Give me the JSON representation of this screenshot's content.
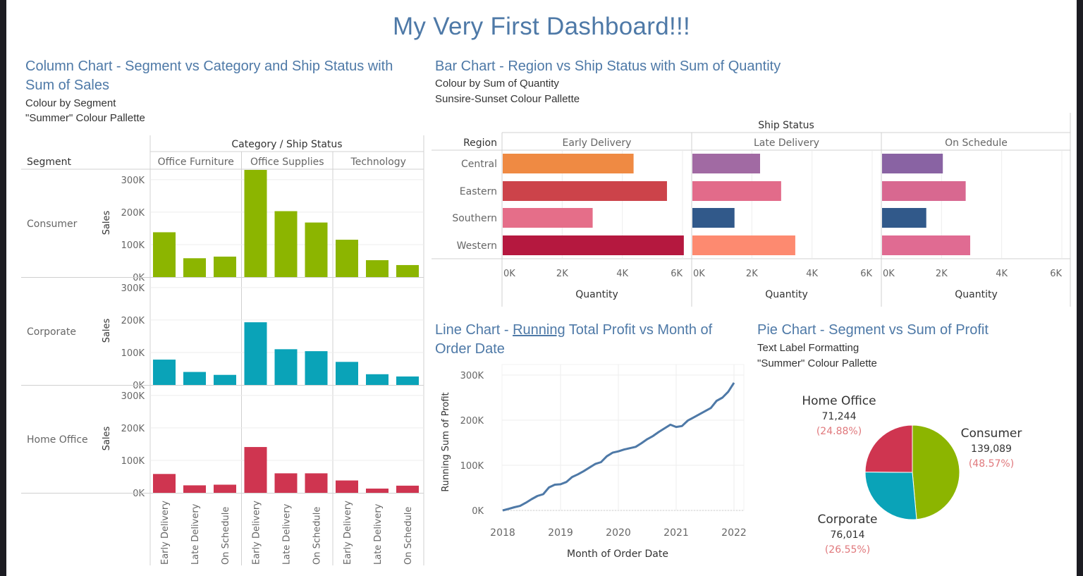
{
  "dashboard": {
    "title": "My Very First Dashboard!!!"
  },
  "column_section": {
    "title": "Column Chart - Segment vs Category and Ship Status with Sum of Sales",
    "subtitle_1": "Colour by Segment",
    "subtitle_2": "\"Summer\" Colour Pallette"
  },
  "bar_section": {
    "title": "Bar Chart - Region vs Ship Status with Sum of Quantity",
    "subtitle_1": "Colour by Sum of Quantity",
    "subtitle_2": "Sunsire-Sunset Colour Pallette"
  },
  "line_section": {
    "title_prefix": "Line Chart - ",
    "title_underlined": "Running",
    "title_rest": " Total Profit vs Month of Order Date"
  },
  "pie_section": {
    "title": "Pie Chart - Segment vs Sum of Profit",
    "subtitle_1": "Text Label Formatting",
    "subtitle_2": "\"Summer\" Colour Pallette"
  },
  "colors": {
    "title_blue": "#4e79a7",
    "consumer": "#8cb500",
    "corporate": "#0aa3b8",
    "home_office": "#cf3550",
    "line": "#4e79a7",
    "pct_label": "#e0787c"
  },
  "chart_data": [
    {
      "id": "column",
      "type": "bar",
      "header_title": "Category  /  Ship Status",
      "row_header": "Segment",
      "ylabel": "Sales",
      "ylim": [
        0,
        330000
      ],
      "yticks": [
        0,
        100000,
        200000,
        300000
      ],
      "ytick_labels": [
        "0K",
        "100K",
        "200K",
        "300K"
      ],
      "categories": [
        "Office Furniture",
        "Office Supplies",
        "Technology"
      ],
      "ship_status": [
        "Early Delivery",
        "Late Delivery",
        "On Schedule"
      ],
      "segments": [
        {
          "name": "Consumer",
          "color": "#8cb500",
          "values": [
            [
              138000,
              58000,
              63000
            ],
            [
              330000,
              203000,
              168000
            ],
            [
              115000,
              52000,
              37000
            ]
          ]
        },
        {
          "name": "Corporate",
          "color": "#0aa3b8",
          "values": [
            [
              78000,
              40000,
              31000
            ],
            [
              193000,
              110000,
              104000
            ],
            [
              71000,
              33000,
              26000
            ]
          ]
        },
        {
          "name": "Home Office",
          "color": "#cf3550",
          "values": [
            [
              58000,
              23000,
              25000
            ],
            [
              141000,
              60000,
              60000
            ],
            [
              38000,
              13000,
              22000
            ]
          ]
        }
      ]
    },
    {
      "id": "bar",
      "type": "bar",
      "orientation": "horizontal",
      "header_title": "Ship Status",
      "row_header": "Region",
      "xlabel": "Quantity",
      "xlim": [
        0,
        6000
      ],
      "xticks": [
        0,
        2000,
        4000,
        6000
      ],
      "xtick_labels": [
        "0K",
        "2K",
        "4K",
        "6K"
      ],
      "regions": [
        "Central",
        "Eastern",
        "Southern",
        "Western"
      ],
      "series": [
        {
          "name": "Early Delivery",
          "values": [
            4350,
            5460,
            2990,
            6020
          ],
          "colors": [
            "#ef8a43",
            "#cc434a",
            "#e56e89",
            "#b5183f"
          ]
        },
        {
          "name": "Late Delivery",
          "values": [
            2250,
            2950,
            1400,
            3420
          ],
          "colors": [
            "#a16aa3",
            "#e26b8a",
            "#31598a",
            "#fd8a70"
          ]
        },
        {
          "name": "On Schedule",
          "values": [
            2020,
            2780,
            1470,
            2930
          ],
          "colors": [
            "#8963a3",
            "#d86890",
            "#31598a",
            "#e06b92"
          ]
        }
      ]
    },
    {
      "id": "line",
      "type": "line",
      "xlabel": "Month of Order Date",
      "ylabel": "Running Sum of Profit",
      "xlim": [
        2018,
        2022
      ],
      "ylim": [
        0,
        300000
      ],
      "xticks": [
        "2018",
        "2019",
        "2020",
        "2021",
        "2022"
      ],
      "ytick_labels": [
        "0K",
        "100K",
        "200K",
        "300K"
      ],
      "x": [
        2018.0,
        2018.1,
        2018.2,
        2018.3,
        2018.4,
        2018.5,
        2018.6,
        2018.7,
        2018.8,
        2018.9,
        2019.0,
        2019.1,
        2019.2,
        2019.3,
        2019.4,
        2019.5,
        2019.6,
        2019.7,
        2019.8,
        2019.9,
        2020.0,
        2020.1,
        2020.2,
        2020.3,
        2020.4,
        2020.5,
        2020.6,
        2020.7,
        2020.8,
        2020.9,
        2021.0,
        2021.1,
        2021.2,
        2021.3,
        2021.4,
        2021.5,
        2021.6,
        2021.7,
        2021.8,
        2021.9,
        2022.0
      ],
      "values": [
        0,
        3500,
        7000,
        10000,
        17000,
        25000,
        32000,
        36000,
        51000,
        57000,
        58000,
        63000,
        74000,
        80000,
        87000,
        95000,
        103000,
        107000,
        120000,
        128000,
        131000,
        135000,
        138000,
        141000,
        149000,
        158000,
        165000,
        174000,
        182000,
        190000,
        185000,
        187000,
        199000,
        206000,
        213000,
        220000,
        227000,
        243000,
        250000,
        263000,
        283000
      ]
    },
    {
      "id": "pie",
      "type": "pie",
      "slices": [
        {
          "name": "Consumer",
          "value": 139089,
          "value_label": "139,089",
          "pct_label": "(48.57%)",
          "color": "#8cb500"
        },
        {
          "name": "Corporate",
          "value": 76014,
          "value_label": "76,014",
          "pct_label": "(26.55%)",
          "color": "#0aa3b8"
        },
        {
          "name": "Home Office",
          "value": 71244,
          "value_label": "71,244",
          "pct_label": "(24.88%)",
          "color": "#cf3550"
        }
      ]
    }
  ]
}
